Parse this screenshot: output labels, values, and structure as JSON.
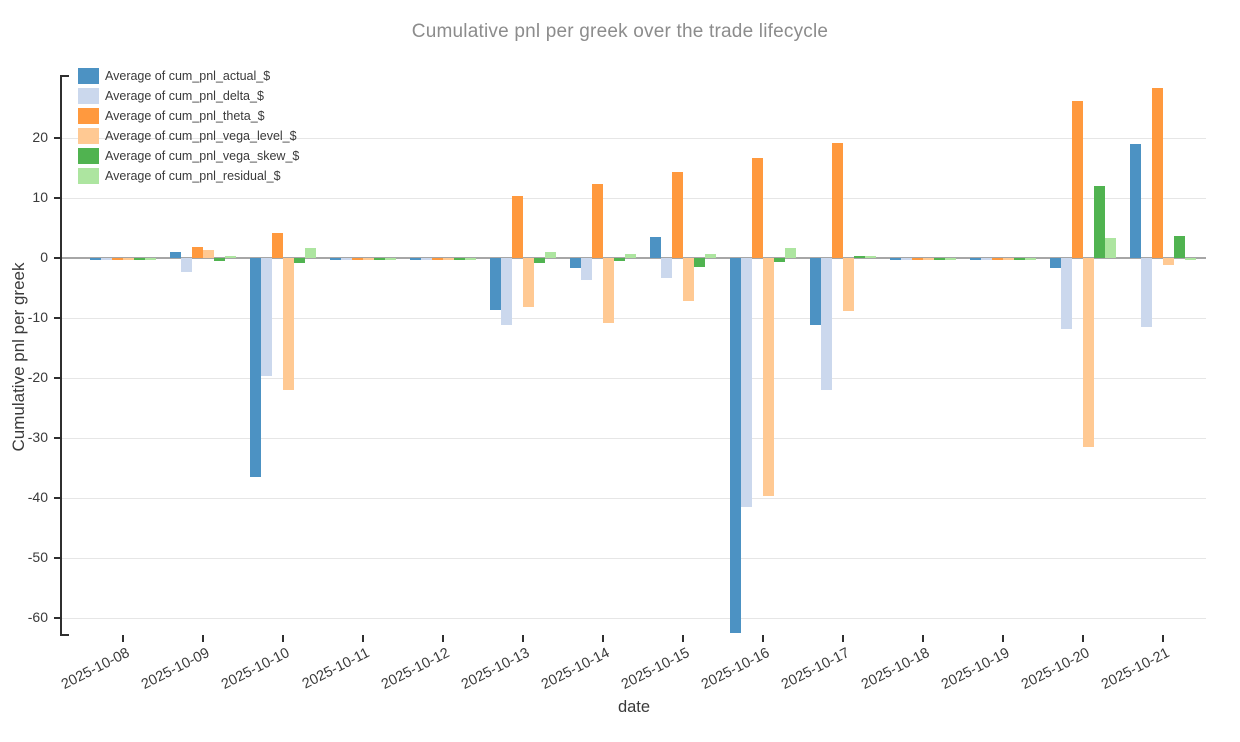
{
  "title": "Cumulative pnl per greek over the trade lifecycle",
  "axes": {
    "x_label": "date",
    "y_label": "Cumulative pnl per greek",
    "y_ticks": [
      20,
      10,
      0,
      -10,
      -20,
      -30,
      -40,
      -50,
      -60
    ]
  },
  "chart_data": {
    "type": "bar",
    "title": "Cumulative pnl per greek over the trade lifecycle",
    "xlabel": "date",
    "ylabel": "Cumulative pnl per greek",
    "ylim": [
      -62.8,
      30.5
    ],
    "grid": true,
    "legend_position": "top-left",
    "categories": [
      "2025-10-08",
      "2025-10-09",
      "2025-10-10",
      "2025-10-11",
      "2025-10-12",
      "2025-10-13",
      "2025-10-14",
      "2025-10-15",
      "2025-10-16",
      "2025-10-17",
      "2025-10-18",
      "2025-10-19",
      "2025-10-20",
      "2025-10-21"
    ],
    "series": [
      {
        "name": "Average of cum_pnl_actual_$",
        "color": "#4C92C3",
        "values": [
          -0.4,
          1.0,
          -36.5,
          -0.4,
          -0.4,
          -8.7,
          -1.6,
          3.5,
          -62.5,
          -11.1,
          -0.3,
          -0.3,
          -1.7,
          19.0
        ]
      },
      {
        "name": "Average of cum_pnl_delta_$",
        "color": "#CBD8ED",
        "values": [
          -0.4,
          -2.3,
          -19.7,
          -0.3,
          -0.3,
          -11.2,
          -3.6,
          -3.4,
          -41.5,
          -22.0,
          -0.3,
          -0.3,
          -11.8,
          -11.5
        ]
      },
      {
        "name": "Average of cum_pnl_theta_$",
        "color": "#FF993E",
        "values": [
          -0.4,
          1.9,
          4.1,
          -0.4,
          -0.4,
          10.3,
          12.4,
          14.4,
          16.7,
          19.1,
          -0.3,
          -0.3,
          26.1,
          28.4
        ]
      },
      {
        "name": "Average of cum_pnl_vega_level_$",
        "color": "#FFC993",
        "values": [
          -0.4,
          1.3,
          -22.0,
          -0.3,
          -0.3,
          -8.1,
          -10.9,
          -7.2,
          -39.6,
          -8.9,
          -0.3,
          -0.3,
          -31.5,
          -1.2
        ]
      },
      {
        "name": "Average of cum_pnl_vega_skew_$",
        "color": "#50B350",
        "values": [
          -0.3,
          -0.5,
          -0.9,
          -0.3,
          -0.3,
          -0.9,
          -0.5,
          -1.5,
          -0.7,
          0.3,
          -0.2,
          -0.2,
          12.0,
          3.7
        ]
      },
      {
        "name": "Average of cum_pnl_residual_$",
        "color": "#ADE5A0",
        "values": [
          -0.3,
          0.3,
          1.7,
          -0.2,
          -0.2,
          1.0,
          0.6,
          0.7,
          1.6,
          0.4,
          -0.2,
          -0.2,
          3.3,
          -0.2
        ]
      }
    ]
  }
}
